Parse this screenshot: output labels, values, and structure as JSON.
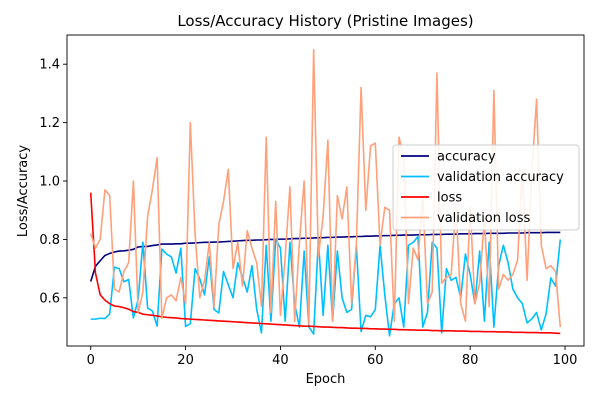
{
  "chart_data": {
    "type": "line",
    "title": "Loss/Accuracy History (Pristine Images)",
    "xlabel": "Epoch",
    "ylabel": "Loss/Accuracy",
    "xlim": [
      -5,
      104
    ],
    "ylim": [
      0.435,
      1.5
    ],
    "xticks": [
      0,
      20,
      40,
      60,
      80,
      100
    ],
    "yticks": [
      0.6,
      0.8,
      1.0,
      1.2,
      1.4
    ],
    "ytick_labels": [
      "0.6",
      "0.8",
      "1.0",
      "1.2",
      "1.4"
    ],
    "grid": false,
    "legend_position": "center-right",
    "series": [
      {
        "name": "accuracy",
        "color": "#00007f",
        "values": [
          0.656,
          0.708,
          0.727,
          0.745,
          0.752,
          0.757,
          0.76,
          0.761,
          0.763,
          0.766,
          0.774,
          0.776,
          0.776,
          0.779,
          0.781,
          0.784,
          0.784,
          0.784,
          0.785,
          0.785,
          0.787,
          0.787,
          0.788,
          0.789,
          0.79,
          0.79,
          0.791,
          0.791,
          0.792,
          0.793,
          0.794,
          0.795,
          0.796,
          0.797,
          0.797,
          0.798,
          0.798,
          0.799,
          0.8,
          0.8,
          0.801,
          0.801,
          0.802,
          0.803,
          0.803,
          0.804,
          0.804,
          0.805,
          0.806,
          0.806,
          0.807,
          0.807,
          0.808,
          0.808,
          0.809,
          0.809,
          0.81,
          0.81,
          0.811,
          0.811,
          0.812,
          0.812,
          0.813,
          0.813,
          0.814,
          0.814,
          0.815,
          0.815,
          0.815,
          0.816,
          0.816,
          0.816,
          0.817,
          0.817,
          0.817,
          0.818,
          0.818,
          0.818,
          0.819,
          0.819,
          0.819,
          0.82,
          0.82,
          0.82,
          0.821,
          0.821,
          0.821,
          0.821,
          0.822,
          0.822,
          0.822,
          0.822,
          0.823,
          0.823,
          0.823,
          0.823,
          0.824,
          0.824,
          0.824,
          0.824
        ]
      },
      {
        "name": "validation accuracy",
        "color": "#00bfff",
        "values": [
          0.527,
          0.527,
          0.53,
          0.529,
          0.545,
          0.705,
          0.7,
          0.655,
          0.663,
          0.531,
          0.595,
          0.79,
          0.565,
          0.555,
          0.503,
          0.767,
          0.75,
          0.74,
          0.685,
          0.77,
          0.502,
          0.512,
          0.7,
          0.665,
          0.61,
          0.74,
          0.56,
          0.548,
          0.69,
          0.645,
          0.6,
          0.72,
          0.67,
          0.62,
          0.71,
          0.56,
          0.48,
          0.78,
          0.52,
          0.8,
          0.77,
          0.52,
          0.79,
          0.58,
          0.5,
          0.76,
          0.5,
          0.476,
          0.8,
          0.54,
          0.78,
          0.52,
          0.76,
          0.6,
          0.55,
          0.56,
          0.78,
          0.485,
          0.54,
          0.535,
          0.56,
          0.78,
          0.61,
          0.47,
          0.58,
          0.6,
          0.5,
          0.78,
          0.79,
          0.81,
          0.5,
          0.55,
          0.79,
          0.77,
          0.48,
          0.7,
          0.66,
          0.67,
          0.6,
          0.75,
          0.68,
          0.58,
          0.76,
          0.52,
          0.79,
          0.5,
          0.71,
          0.78,
          0.72,
          0.63,
          0.6,
          0.58,
          0.514,
          0.528,
          0.55,
          0.49,
          0.545,
          0.668,
          0.64,
          0.8
        ]
      },
      {
        "name": "loss",
        "color": "#ff0000",
        "values": [
          0.96,
          0.685,
          0.61,
          0.592,
          0.58,
          0.572,
          0.57,
          0.566,
          0.561,
          0.553,
          0.55,
          0.544,
          0.542,
          0.54,
          0.538,
          0.535,
          0.533,
          0.532,
          0.531,
          0.529,
          0.528,
          0.527,
          0.526,
          0.525,
          0.524,
          0.523,
          0.522,
          0.521,
          0.52,
          0.519,
          0.518,
          0.517,
          0.516,
          0.515,
          0.514,
          0.513,
          0.512,
          0.511,
          0.51,
          0.509,
          0.508,
          0.507,
          0.506,
          0.505,
          0.504,
          0.503,
          0.503,
          0.502,
          0.501,
          0.5,
          0.5,
          0.499,
          0.498,
          0.498,
          0.497,
          0.496,
          0.496,
          0.495,
          0.495,
          0.494,
          0.494,
          0.493,
          0.493,
          0.492,
          0.492,
          0.491,
          0.491,
          0.49,
          0.49,
          0.489,
          0.489,
          0.489,
          0.488,
          0.488,
          0.487,
          0.487,
          0.487,
          0.486,
          0.486,
          0.486,
          0.485,
          0.485,
          0.485,
          0.484,
          0.484,
          0.484,
          0.483,
          0.483,
          0.483,
          0.482,
          0.482,
          0.482,
          0.481,
          0.481,
          0.481,
          0.48,
          0.48,
          0.48,
          0.479,
          0.478
        ]
      },
      {
        "name": "validation loss",
        "color": "#ffa07a",
        "values": [
          0.82,
          0.77,
          0.8,
          0.97,
          0.95,
          0.63,
          0.62,
          0.69,
          0.72,
          1.0,
          0.55,
          0.62,
          0.88,
          0.97,
          1.08,
          0.53,
          0.6,
          0.61,
          0.59,
          0.67,
          0.58,
          1.2,
          0.82,
          0.6,
          0.66,
          0.79,
          0.57,
          0.85,
          0.93,
          1.04,
          0.7,
          0.79,
          0.64,
          0.83,
          0.77,
          0.72,
          0.57,
          1.15,
          0.55,
          0.93,
          0.54,
          0.74,
          0.98,
          0.52,
          0.79,
          1.0,
          0.51,
          1.45,
          0.74,
          0.88,
          1.14,
          0.52,
          0.95,
          0.87,
          0.98,
          0.58,
          0.78,
          1.32,
          0.9,
          1.12,
          1.13,
          0.78,
          0.91,
          0.9,
          0.52,
          1.15,
          1.08,
          0.58,
          0.77,
          0.73,
          0.95,
          0.58,
          0.62,
          1.37,
          0.65,
          0.67,
          0.68,
          0.92,
          0.58,
          0.52,
          0.91,
          0.58,
          0.65,
          0.87,
          0.57,
          1.31,
          0.63,
          0.68,
          0.66,
          0.68,
          0.73,
          1.04,
          0.66,
          1.03,
          1.28,
          0.78,
          0.7,
          0.71,
          0.69,
          0.5
        ]
      }
    ]
  }
}
